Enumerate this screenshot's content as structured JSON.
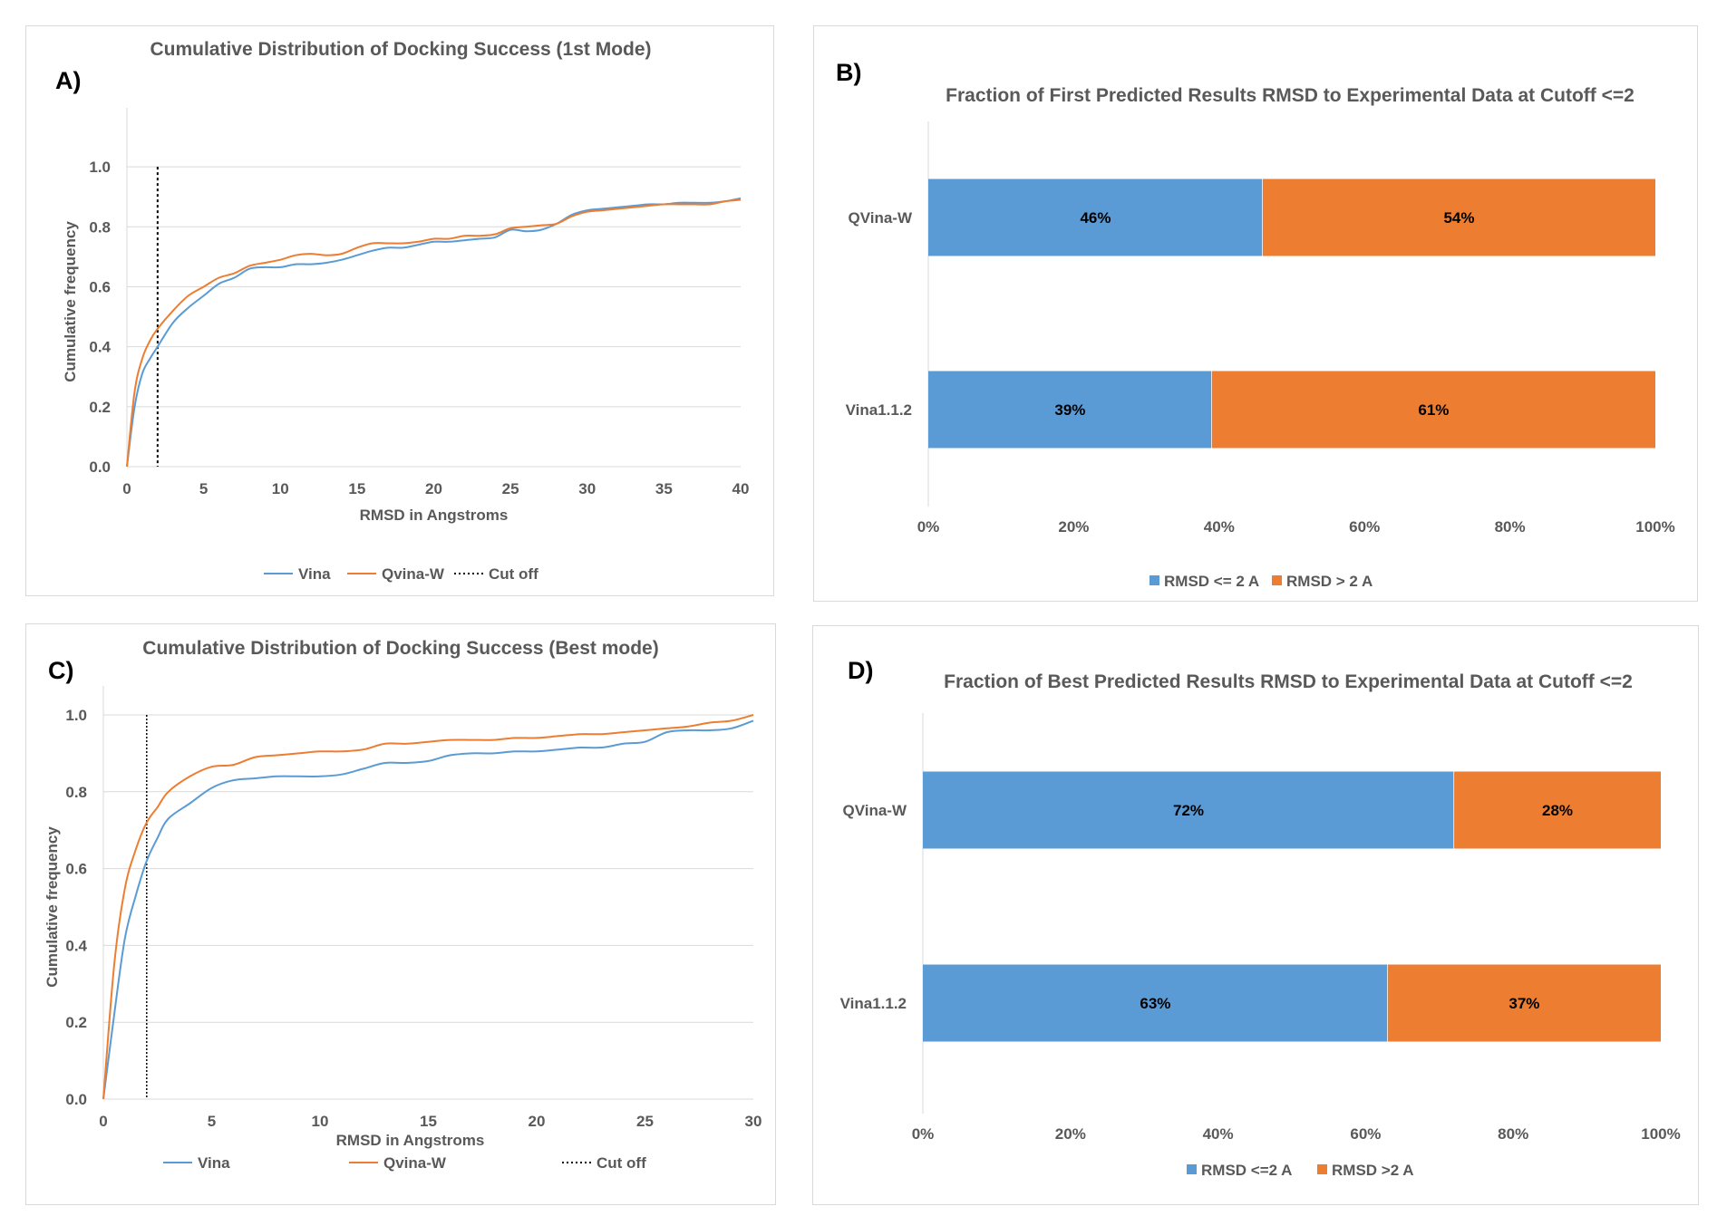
{
  "chart_data": [
    {
      "panel": "A)",
      "type": "line",
      "title": "Cumulative Distribution of Docking Success (1st Mode)",
      "xlabel": "RMSD in Angstroms",
      "ylabel": "Cumulative frequency",
      "xlim": [
        0,
        40
      ],
      "ylim": [
        0,
        1.1
      ],
      "xticks": [
        "0",
        "5",
        "10",
        "15",
        "20",
        "25",
        "30",
        "35",
        "40"
      ],
      "yticks": [
        "0.0",
        "0.2",
        "0.4",
        "0.6",
        "0.8",
        "1.0"
      ],
      "grid": true,
      "legend_position": "bottom",
      "cutoff": {
        "name": "Cut off",
        "x": 2,
        "y_max": 1.0
      },
      "series": [
        {
          "name": "Vina",
          "color": "#5b9bd5",
          "x": [
            0,
            0.5,
            1,
            1.5,
            2,
            3,
            4,
            5,
            6,
            7,
            8,
            9,
            10,
            11,
            12,
            13,
            14,
            15,
            16,
            17,
            18,
            19,
            20,
            21,
            22,
            23,
            24,
            25,
            26,
            27,
            28,
            29,
            30,
            31,
            32,
            33,
            34,
            35,
            36,
            37,
            38,
            39,
            40
          ],
          "y": [
            0,
            0.2,
            0.31,
            0.36,
            0.4,
            0.48,
            0.53,
            0.57,
            0.61,
            0.63,
            0.66,
            0.665,
            0.665,
            0.675,
            0.675,
            0.68,
            0.69,
            0.705,
            0.72,
            0.73,
            0.73,
            0.74,
            0.75,
            0.75,
            0.755,
            0.76,
            0.765,
            0.79,
            0.785,
            0.79,
            0.81,
            0.84,
            0.855,
            0.86,
            0.865,
            0.87,
            0.875,
            0.875,
            0.88,
            0.88,
            0.88,
            0.885,
            0.895
          ]
        },
        {
          "name": "Qvina-W",
          "color": "#ed7d31",
          "x": [
            0,
            0.5,
            1,
            1.5,
            2,
            3,
            4,
            5,
            6,
            7,
            8,
            9,
            10,
            11,
            12,
            13,
            14,
            15,
            16,
            17,
            18,
            19,
            20,
            21,
            22,
            23,
            24,
            25,
            26,
            27,
            28,
            29,
            30,
            31,
            32,
            33,
            34,
            35,
            36,
            37,
            38,
            39,
            40
          ],
          "y": [
            0,
            0.25,
            0.36,
            0.42,
            0.46,
            0.52,
            0.57,
            0.6,
            0.63,
            0.645,
            0.67,
            0.68,
            0.69,
            0.705,
            0.71,
            0.705,
            0.71,
            0.73,
            0.745,
            0.745,
            0.745,
            0.75,
            0.76,
            0.76,
            0.77,
            0.77,
            0.775,
            0.795,
            0.8,
            0.805,
            0.81,
            0.835,
            0.85,
            0.855,
            0.86,
            0.865,
            0.87,
            0.875,
            0.875,
            0.875,
            0.875,
            0.885,
            0.89
          ]
        }
      ]
    },
    {
      "panel": "B)",
      "type": "bar",
      "orientation": "horizontal",
      "stacked": true,
      "title": "Fraction of First Predicted Results RMSD to Experimental Data at Cutoff <=2",
      "categories": [
        "QVina-W",
        "Vina1.1.2"
      ],
      "xticks": [
        "0%",
        "20%",
        "40%",
        "60%",
        "80%",
        "100%"
      ],
      "xlim": [
        0,
        100
      ],
      "legend_position": "bottom",
      "series": [
        {
          "name": "RMSD <= 2 A",
          "color": "#5b9bd5",
          "values": [
            46,
            39
          ],
          "labels": [
            "46%",
            "39%"
          ]
        },
        {
          "name": "RMSD > 2 A",
          "color": "#ed7d31",
          "values": [
            54,
            61
          ],
          "labels": [
            "54%",
            "61%"
          ]
        }
      ]
    },
    {
      "panel": "C)",
      "type": "line",
      "title": "Cumulative Distribution of Docking Success (Best mode)",
      "xlabel": "RMSD in Angstroms",
      "ylabel": "Cumulative frequency",
      "xlim": [
        0,
        30
      ],
      "ylim": [
        0,
        1.0
      ],
      "xticks": [
        "0",
        "5",
        "10",
        "15",
        "20",
        "25",
        "30"
      ],
      "yticks": [
        "0.0",
        "0.2",
        "0.4",
        "0.6",
        "0.8",
        "1.0"
      ],
      "grid": true,
      "legend_position": "bottom",
      "cutoff": {
        "name": "Cut off",
        "x": 2,
        "y_max": 1.0
      },
      "series": [
        {
          "name": "Vina",
          "color": "#5b9bd5",
          "x": [
            0,
            0.5,
            1,
            1.5,
            2,
            2.5,
            3,
            4,
            5,
            6,
            7,
            8,
            9,
            10,
            11,
            12,
            13,
            14,
            15,
            16,
            17,
            18,
            19,
            20,
            21,
            22,
            23,
            24,
            25,
            26,
            27,
            28,
            29,
            30
          ],
          "y": [
            0,
            0.22,
            0.42,
            0.53,
            0.62,
            0.68,
            0.73,
            0.77,
            0.81,
            0.83,
            0.835,
            0.84,
            0.84,
            0.84,
            0.845,
            0.86,
            0.875,
            0.875,
            0.88,
            0.895,
            0.9,
            0.9,
            0.905,
            0.905,
            0.91,
            0.915,
            0.915,
            0.925,
            0.93,
            0.955,
            0.96,
            0.96,
            0.965,
            0.985
          ]
        },
        {
          "name": "Qvina-W",
          "color": "#ed7d31",
          "x": [
            0,
            0.5,
            1,
            1.5,
            2,
            2.5,
            3,
            4,
            5,
            6,
            7,
            8,
            9,
            10,
            11,
            12,
            13,
            14,
            15,
            16,
            17,
            18,
            19,
            20,
            21,
            22,
            23,
            24,
            25,
            26,
            27,
            28,
            29,
            30
          ],
          "y": [
            0,
            0.35,
            0.55,
            0.65,
            0.72,
            0.76,
            0.8,
            0.84,
            0.865,
            0.87,
            0.89,
            0.895,
            0.9,
            0.905,
            0.905,
            0.91,
            0.925,
            0.925,
            0.93,
            0.935,
            0.935,
            0.935,
            0.94,
            0.94,
            0.945,
            0.95,
            0.95,
            0.955,
            0.96,
            0.965,
            0.97,
            0.98,
            0.985,
            1.0
          ]
        }
      ]
    },
    {
      "panel": "D)",
      "type": "bar",
      "orientation": "horizontal",
      "stacked": true,
      "title": "Fraction of Best Predicted Results RMSD to Experimental Data at Cutoff <=2",
      "categories": [
        "QVina-W",
        "Vina1.1.2"
      ],
      "xticks": [
        "0%",
        "20%",
        "40%",
        "60%",
        "80%",
        "100%"
      ],
      "xlim": [
        0,
        100
      ],
      "legend_position": "bottom",
      "series": [
        {
          "name": "RMSD <=2 A",
          "color": "#5b9bd5",
          "values": [
            72,
            63
          ],
          "labels": [
            "72%",
            "63%"
          ]
        },
        {
          "name": "RMSD >2 A",
          "color": "#ed7d31",
          "values": [
            28,
            37
          ],
          "labels": [
            "28%",
            "37%"
          ]
        }
      ]
    }
  ]
}
